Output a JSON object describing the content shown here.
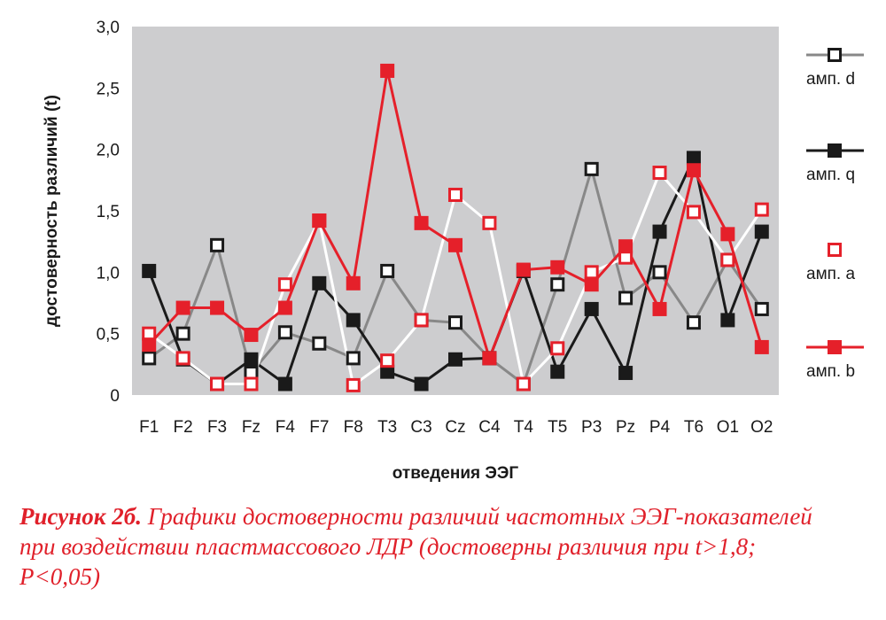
{
  "chart_data": {
    "type": "line",
    "categories": [
      "F1",
      "F2",
      "F3",
      "Fz",
      "F4",
      "F7",
      "F8",
      "T3",
      "C3",
      "Cz",
      "C4",
      "T4",
      "T5",
      "P3",
      "Pz",
      "P4",
      "T6",
      "O1",
      "O2"
    ],
    "y_ticks": [
      "0",
      "0,5",
      "1,0",
      "1,5",
      "2,0",
      "2,5",
      "3,0"
    ],
    "ylim": [
      0,
      3
    ],
    "ylabel": "достоверность различий (t)",
    "xlabel": "отведения ЭЭГ",
    "grid": false,
    "legend_position": "right",
    "series": [
      {
        "name": "амп. d",
        "color": "#888888",
        "marker": "hollow-square",
        "values": [
          0.3,
          0.5,
          1.22,
          0.18,
          0.51,
          0.42,
          0.3,
          1.01,
          0.61,
          0.59,
          0.3,
          0.09,
          0.9,
          1.84,
          0.79,
          1.0,
          0.59,
          1.1,
          0.7
        ]
      },
      {
        "name": "амп. q",
        "color": "#1a1a1a",
        "marker": "filled-square",
        "values": [
          1.01,
          0.29,
          0.09,
          0.29,
          0.09,
          0.91,
          0.61,
          0.19,
          0.09,
          0.29,
          0.3,
          1.01,
          0.19,
          0.7,
          0.18,
          1.33,
          1.93,
          0.61,
          1.33
        ]
      },
      {
        "name": "амп. a",
        "color": "#ffffff",
        "marker": "hollow-red-square",
        "values": [
          0.5,
          0.3,
          0.09,
          0.09,
          0.9,
          1.42,
          0.08,
          0.28,
          0.61,
          1.63,
          1.4,
          0.09,
          0.38,
          1.0,
          1.12,
          1.81,
          1.49,
          1.1,
          1.51
        ]
      },
      {
        "name": "амп. b",
        "color": "#e5202a",
        "marker": "filled-red-square",
        "values": [
          0.41,
          0.71,
          0.71,
          0.49,
          0.71,
          1.42,
          0.91,
          2.64,
          1.4,
          1.22,
          0.3,
          1.02,
          1.04,
          0.9,
          1.21,
          0.7,
          1.83,
          1.31,
          0.39
        ]
      }
    ]
  },
  "caption": {
    "lead": "Рисунок 2б.",
    "text": " Графики достоверности различий частотных ЭЭГ-показателей при воздействии пластмассового ЛДР (достоверны различия при t>1,8; P<0,05)"
  },
  "colors": {
    "plot_background": "#cdcdcf",
    "caption": "#e0202a",
    "accent_red": "#e5202a"
  }
}
